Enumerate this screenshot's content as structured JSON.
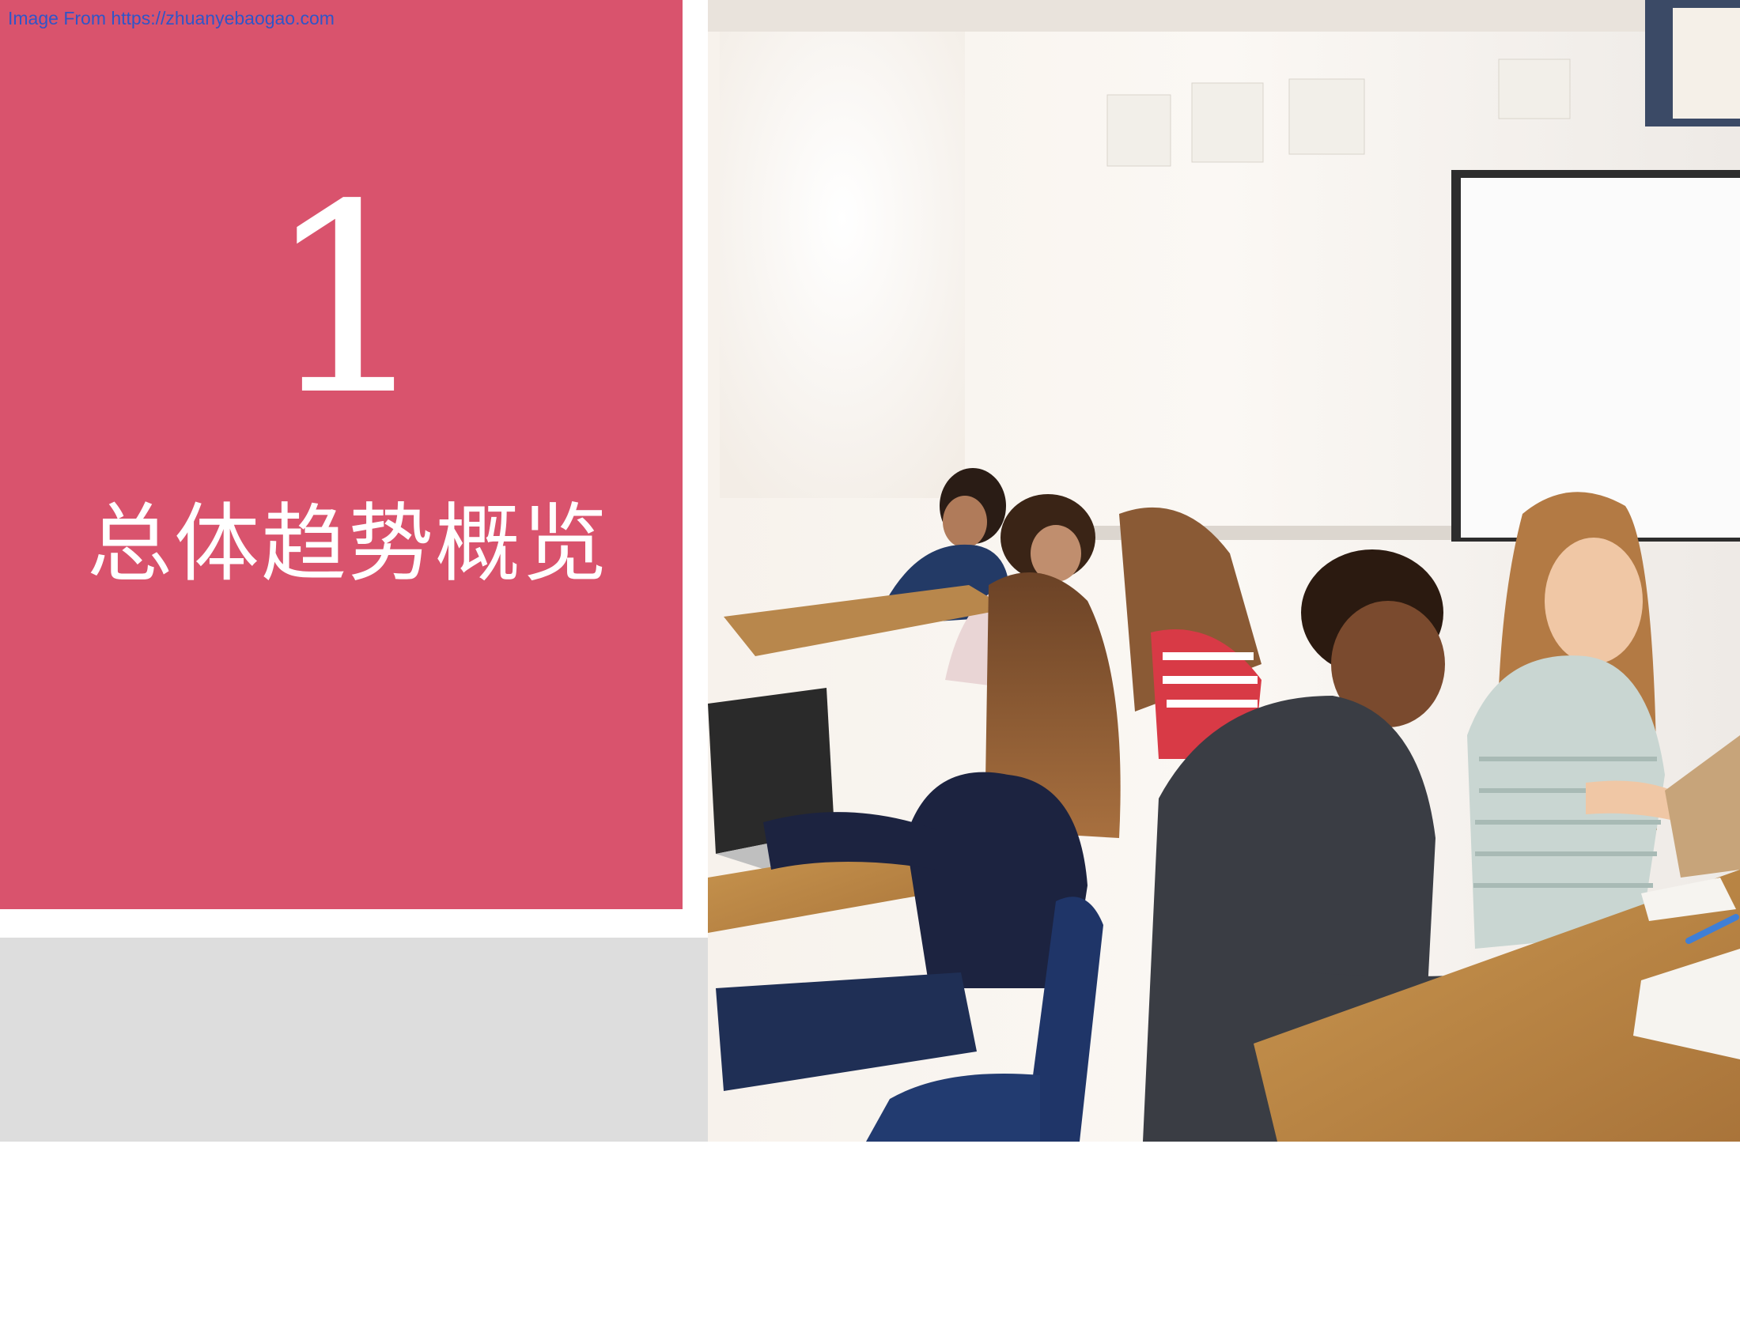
{
  "source_link": "Image From https://zhuanyebaogao.com",
  "section": {
    "number": "1",
    "title": "总体趋势概览"
  },
  "colors": {
    "accent": "#d9536d",
    "band": "#dddddd",
    "link": "#2f55c8"
  },
  "photo": {
    "subject": "classroom-students-photo"
  }
}
